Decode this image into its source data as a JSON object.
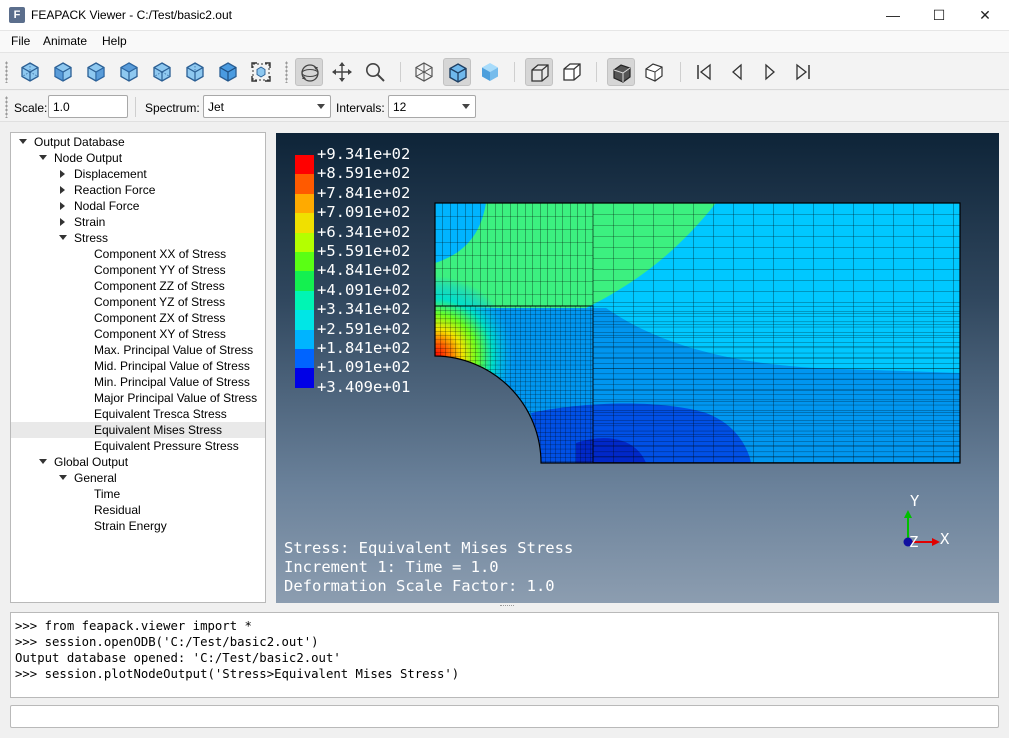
{
  "window": {
    "title": "FEAPACK Viewer - C:/Test/basic2.out",
    "app_icon_letter": "F",
    "minimize_glyph": "—",
    "maximize_glyph": "☐",
    "close_glyph": "✕"
  },
  "menu": [
    "File",
    "Animate",
    "Help"
  ],
  "toolbar": {
    "view_buttons": [
      "iso-view-icon",
      "front-view-icon",
      "back-view-icon",
      "top-view-icon",
      "bottom-view-icon",
      "left-view-icon",
      "right-view-icon",
      "fit-view-icon"
    ],
    "navigation_buttons": [
      "rotate-icon",
      "pan-icon",
      "zoom-icon"
    ],
    "render_buttons": [
      "wireframe-icon",
      "shaded-edges-icon",
      "shaded-icon"
    ],
    "deform_buttons": [
      "deformed-shape-icon",
      "undeformed-shape-icon"
    ],
    "contour_buttons": [
      "contour-filled-icon",
      "contour-outline-icon"
    ],
    "animation_buttons": [
      "first-frame-icon",
      "previous-frame-icon",
      "next-frame-icon",
      "last-frame-icon"
    ]
  },
  "options": {
    "scale_label": "Scale:",
    "scale_value": "1.0",
    "spectrum_label": "Spectrum:",
    "spectrum_value": "Jet",
    "intervals_label": "Intervals:",
    "intervals_value": "12"
  },
  "tree": [
    {
      "label": "Output Database",
      "level": 0,
      "state": "expanded"
    },
    {
      "label": "Node Output",
      "level": 1,
      "state": "expanded"
    },
    {
      "label": "Displacement",
      "level": 2,
      "state": "collapsed"
    },
    {
      "label": "Reaction Force",
      "level": 2,
      "state": "collapsed"
    },
    {
      "label": "Nodal Force",
      "level": 2,
      "state": "collapsed"
    },
    {
      "label": "Strain",
      "level": 2,
      "state": "collapsed"
    },
    {
      "label": "Stress",
      "level": 2,
      "state": "expanded"
    },
    {
      "label": "Component XX of Stress",
      "level": 3,
      "state": "leaf"
    },
    {
      "label": "Component YY of Stress",
      "level": 3,
      "state": "leaf"
    },
    {
      "label": "Component ZZ of Stress",
      "level": 3,
      "state": "leaf"
    },
    {
      "label": "Component YZ of Stress",
      "level": 3,
      "state": "leaf"
    },
    {
      "label": "Component ZX of Stress",
      "level": 3,
      "state": "leaf"
    },
    {
      "label": "Component XY of Stress",
      "level": 3,
      "state": "leaf"
    },
    {
      "label": "Max. Principal Value of Stress",
      "level": 3,
      "state": "leaf"
    },
    {
      "label": "Mid. Principal Value of Stress",
      "level": 3,
      "state": "leaf"
    },
    {
      "label": "Min. Principal Value of Stress",
      "level": 3,
      "state": "leaf"
    },
    {
      "label": "Major Principal Value of Stress",
      "level": 3,
      "state": "leaf"
    },
    {
      "label": "Equivalent Tresca Stress",
      "level": 3,
      "state": "leaf"
    },
    {
      "label": "Equivalent Mises Stress",
      "level": 3,
      "state": "leaf",
      "selected": true
    },
    {
      "label": "Equivalent Pressure Stress",
      "level": 3,
      "state": "leaf"
    },
    {
      "label": "Global Output",
      "level": 1,
      "state": "expanded"
    },
    {
      "label": "General",
      "level": 2,
      "state": "expanded"
    },
    {
      "label": "Time",
      "level": 3,
      "state": "leaf"
    },
    {
      "label": "Residual",
      "level": 3,
      "state": "leaf"
    },
    {
      "label": "Strain Energy",
      "level": 3,
      "state": "leaf"
    }
  ],
  "legend": {
    "labels": [
      "+9.341e+02",
      "+8.591e+02",
      "+7.841e+02",
      "+7.091e+02",
      "+6.341e+02",
      "+5.591e+02",
      "+4.841e+02",
      "+4.091e+02",
      "+3.341e+02",
      "+2.591e+02",
      "+1.841e+02",
      "+1.091e+02",
      "+3.409e+01"
    ],
    "colors": [
      "#ff0000",
      "#ff5a00",
      "#ffaa00",
      "#f0e000",
      "#b4ff00",
      "#5aff14",
      "#14f050",
      "#00f5b4",
      "#00e6e6",
      "#00b4ff",
      "#0064ff",
      "#0000e6"
    ]
  },
  "viewport": {
    "stress_line": "Stress: Equivalent Mises Stress",
    "increment_line": "Increment 1: Time = 1.0",
    "scale_line": "Deformation Scale Factor: 1.0",
    "triad_x": "X",
    "triad_y": "Y",
    "triad_z": "Z"
  },
  "console": [
    ">>> from feapack.viewer import *",
    ">>> session.openODB('C:/Test/basic2.out')",
    "Output database opened: 'C:/Test/basic2.out'",
    ">>> session.plotNodeOutput('Stress>Equivalent Mises Stress')"
  ],
  "command_input": ""
}
